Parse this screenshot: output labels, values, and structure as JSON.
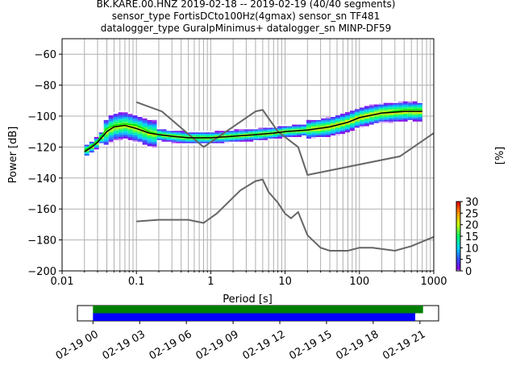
{
  "chart_data": {
    "type": "heatmap",
    "title_lines": [
      "BK.KARE.00.HNZ   2019-02-18 -- 2019-02-19  (40/40 segments)",
      "sensor_type FortisDCto100Hz(4gmax) sensor_sn TF481",
      "datalogger_type GuralpMinimus+ datalogger_sn MINP-DF59"
    ],
    "xlabel": "Period [s]",
    "ylabel": "Power [dB]",
    "x_scale": "log",
    "xlim": [
      0.01,
      1000
    ],
    "ylim": [
      -200,
      -50
    ],
    "x_ticks": [
      {
        "value": 0.01,
        "label": "0.01"
      },
      {
        "value": 0.1,
        "label": "0.1"
      },
      {
        "value": 1,
        "label": "1"
      },
      {
        "value": 10,
        "label": "10"
      },
      {
        "value": 100,
        "label": "100"
      },
      {
        "value": 1000,
        "label": "1000"
      }
    ],
    "y_ticks": [
      {
        "value": -60,
        "label": "−60"
      },
      {
        "value": -80,
        "label": "−80"
      },
      {
        "value": -100,
        "label": "−100"
      },
      {
        "value": -120,
        "label": "−120"
      },
      {
        "value": -140,
        "label": "−140"
      },
      {
        "value": -160,
        "label": "−160"
      },
      {
        "value": -180,
        "label": "−180"
      },
      {
        "value": -200,
        "label": "−200"
      }
    ],
    "grid": true,
    "colorbar": {
      "label": "[%]",
      "range": [
        0,
        30
      ],
      "ticks": [
        {
          "value": 0,
          "label": "0"
        },
        {
          "value": 5,
          "label": "5"
        },
        {
          "value": 10,
          "label": "10"
        },
        {
          "value": 15,
          "label": "15"
        },
        {
          "value": 20,
          "label": "20"
        },
        {
          "value": 25,
          "label": "25"
        },
        {
          "value": 30,
          "label": "30"
        }
      ],
      "colormap": "pqlx"
    },
    "noise_models": [
      {
        "points": [
          [
            0.1,
            -91
          ],
          [
            0.22,
            -97
          ],
          [
            0.8,
            -120
          ],
          [
            4,
            -97
          ],
          [
            5,
            -96
          ],
          [
            8,
            -110
          ],
          [
            15,
            -120
          ],
          [
            20,
            -138
          ],
          [
            350,
            -126
          ],
          [
            1000,
            -111
          ]
        ]
      },
      {
        "points": [
          [
            0.1,
            -168
          ],
          [
            0.2,
            -167
          ],
          [
            0.5,
            -167
          ],
          [
            0.8,
            -169
          ],
          [
            1.2,
            -163
          ],
          [
            2.5,
            -148
          ],
          [
            4,
            -142
          ],
          [
            5,
            -141
          ],
          [
            6,
            -149
          ],
          [
            8,
            -156
          ],
          [
            10,
            -163
          ],
          [
            12,
            -166
          ],
          [
            15,
            -162
          ],
          [
            20,
            -177
          ],
          [
            30,
            -185
          ],
          [
            40,
            -187
          ],
          [
            70,
            -187
          ],
          [
            100,
            -185
          ],
          [
            150,
            -185
          ],
          [
            300,
            -187
          ],
          [
            500,
            -184
          ],
          [
            1000,
            -178
          ]
        ]
      }
    ],
    "mean_curve": [
      [
        0.02,
        -123
      ],
      [
        0.025,
        -120
      ],
      [
        0.03,
        -117
      ],
      [
        0.04,
        -110
      ],
      [
        0.05,
        -107
      ],
      [
        0.07,
        -106
      ],
      [
        0.1,
        -108
      ],
      [
        0.15,
        -111
      ],
      [
        0.2,
        -112
      ],
      [
        0.3,
        -113
      ],
      [
        0.5,
        -114
      ],
      [
        1,
        -114
      ],
      [
        2,
        -113
      ],
      [
        4,
        -112
      ],
      [
        7,
        -111
      ],
      [
        10,
        -110
      ],
      [
        20,
        -109
      ],
      [
        40,
        -107
      ],
      [
        70,
        -104
      ],
      [
        100,
        -101
      ],
      [
        200,
        -98
      ],
      [
        400,
        -97
      ],
      [
        700,
        -97
      ]
    ],
    "mode_curve": [
      [
        0.02,
        -122
      ],
      [
        0.025,
        -119
      ],
      [
        0.03,
        -116
      ],
      [
        0.04,
        -108
      ],
      [
        0.05,
        -106
      ],
      [
        0.07,
        -105
      ],
      [
        0.1,
        -106
      ],
      [
        0.15,
        -110
      ],
      [
        0.2,
        -112
      ],
      [
        0.3,
        -113
      ],
      [
        0.5,
        -114
      ],
      [
        1,
        -114
      ],
      [
        2,
        -113
      ],
      [
        4,
        -112
      ],
      [
        7,
        -111
      ],
      [
        10,
        -110
      ],
      [
        20,
        -109
      ],
      [
        40,
        -107
      ],
      [
        70,
        -104
      ],
      [
        100,
        -101
      ],
      [
        200,
        -98
      ],
      [
        400,
        -96
      ],
      [
        700,
        -96
      ]
    ],
    "time_coverage": {
      "ticks": [
        {
          "value": 0,
          "label": "02-19 00"
        },
        {
          "value": 3,
          "label": "02-19 03"
        },
        {
          "value": 6,
          "label": "02-19 06"
        },
        {
          "value": 9,
          "label": "02-19 09"
        },
        {
          "value": 12,
          "label": "02-19 12"
        },
        {
          "value": 15,
          "label": "02-19 15"
        },
        {
          "value": 18,
          "label": "02-19 18"
        },
        {
          "value": 21,
          "label": "02-19 21"
        }
      ],
      "range_hours": [
        -1,
        22.2
      ],
      "data_bar_hours": [
        0,
        21.2
      ],
      "psd_bar_hours": [
        0,
        20.7
      ],
      "data_color": "#008000",
      "psd_color": "#0000ff"
    },
    "colors": {
      "noise_model": "#666666",
      "mean": "#000000",
      "mode": "#00e000",
      "grid": "#b0b0b0"
    }
  }
}
